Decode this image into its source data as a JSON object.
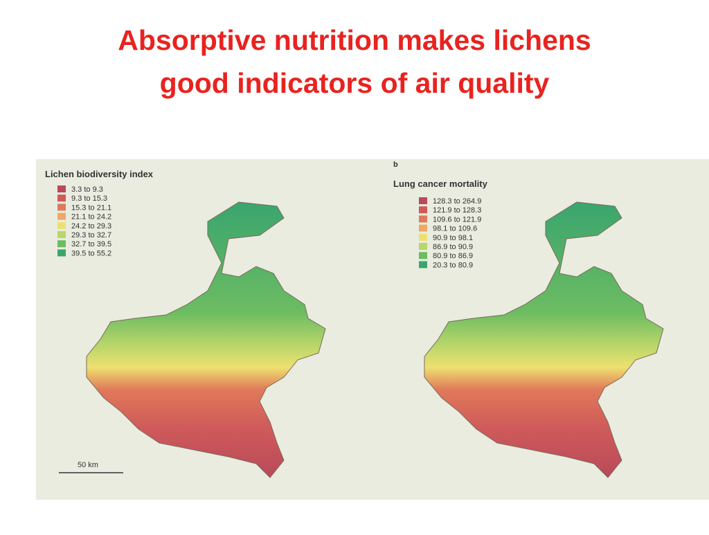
{
  "title": {
    "line1": "Absorptive nutrition makes lichens",
    "line2": "good indicators of air quality"
  },
  "left_map": {
    "title": "Lichen biodiversity index",
    "legend": [
      {
        "label": "3.3 to 9.3",
        "color": "#b84a5a"
      },
      {
        "label": "9.3 to 15.3",
        "color": "#cf5a5a"
      },
      {
        "label": "15.3 to 21.1",
        "color": "#e07a5a"
      },
      {
        "label": "21.1 to 24.2",
        "color": "#eea868"
      },
      {
        "label": "24.2 to 29.3",
        "color": "#eee070"
      },
      {
        "label": "29.3 to 32.7",
        "color": "#b8d66a"
      },
      {
        "label": "32.7 to 39.5",
        "color": "#6cbc62"
      },
      {
        "label": "39.5 to 55.2",
        "color": "#3aa56e"
      }
    ],
    "scale": "50 km"
  },
  "right_map": {
    "panel": "b",
    "title": "Lung cancer mortality",
    "legend": [
      {
        "label": "128.3 to 264.9",
        "color": "#b84a5a"
      },
      {
        "label": "121.9 to 128.3",
        "color": "#cf5a5a"
      },
      {
        "label": "109.6 to 121.9",
        "color": "#e07a5a"
      },
      {
        "label": "98.1 to 109.6",
        "color": "#eea868"
      },
      {
        "label": "90.9 to 98.1",
        "color": "#eee070"
      },
      {
        "label": "86.9 to 90.9",
        "color": "#b8d66a"
      },
      {
        "label": "80.9 to 86.9",
        "color": "#6cbc62"
      },
      {
        "label": "20.3 to 80.9",
        "color": "#3aa56e"
      }
    ]
  }
}
